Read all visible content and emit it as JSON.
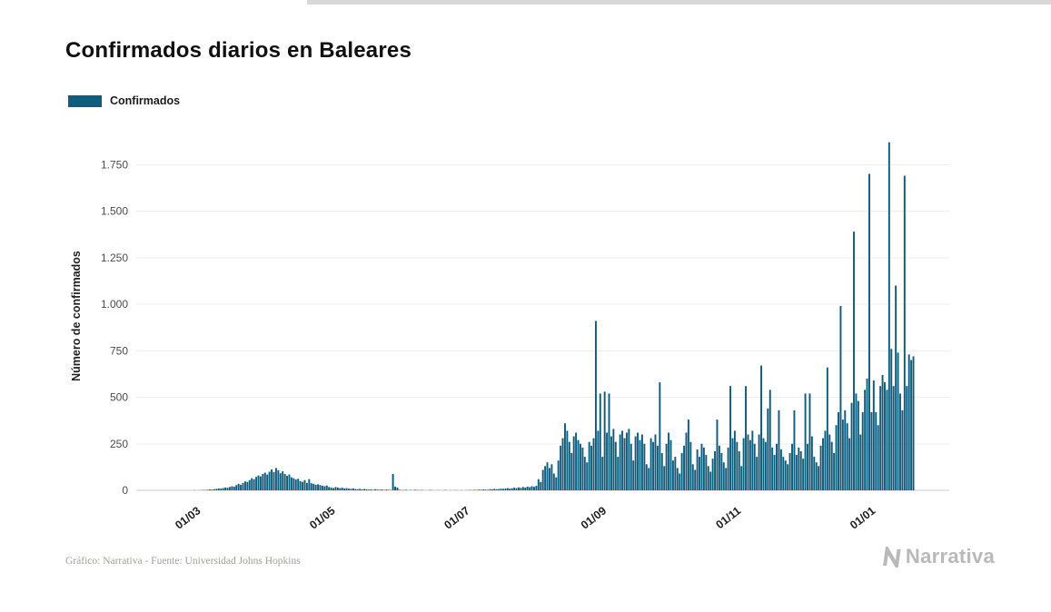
{
  "header": {
    "title": "Confirmados diarios en Baleares"
  },
  "legend": {
    "label": "Confirmados",
    "swatch_color": "#0f5d7d"
  },
  "footer": {
    "credit": "Gráfico: Narrativa - Fuente: Universidad Johns Hopkins",
    "brand": "Narrativa"
  },
  "chart_data": {
    "type": "bar",
    "title": "Confirmados diarios en Baleares",
    "series_name": "Confirmados",
    "bar_color": "#0f5d7d",
    "xlabel": "",
    "ylabel": "Número de confirmados",
    "ylim": [
      0,
      1900
    ],
    "grid": "horizontal",
    "legend_position": "top-left",
    "x_start_date": "2020-02-01",
    "x_frequency": "daily",
    "y_ticks": [
      {
        "label": "0",
        "value": 0
      },
      {
        "label": "250",
        "value": 250
      },
      {
        "label": "500",
        "value": 500
      },
      {
        "label": "750",
        "value": 750
      },
      {
        "label": "1.000",
        "value": 1000
      },
      {
        "label": "1.250",
        "value": 1250
      },
      {
        "label": "1.500",
        "value": 1500
      },
      {
        "label": "1.750",
        "value": 1750
      }
    ],
    "x_ticks": [
      {
        "label": "01/03",
        "index": 29
      },
      {
        "label": "01/05",
        "index": 90
      },
      {
        "label": "01/07",
        "index": 151
      },
      {
        "label": "01/09",
        "index": 213
      },
      {
        "label": "01/11",
        "index": 274
      },
      {
        "label": "01/01",
        "index": 335
      }
    ],
    "values": [
      0,
      0,
      0,
      0,
      0,
      0,
      0,
      0,
      0,
      0,
      0,
      0,
      0,
      0,
      0,
      0,
      0,
      0,
      0,
      0,
      0,
      0,
      0,
      0,
      0,
      0,
      1,
      0,
      1,
      1,
      2,
      2,
      3,
      5,
      4,
      6,
      8,
      10,
      9,
      12,
      15,
      14,
      18,
      22,
      20,
      28,
      35,
      30,
      40,
      48,
      45,
      55,
      65,
      60,
      72,
      80,
      75,
      88,
      95,
      85,
      100,
      112,
      98,
      120,
      108,
      92,
      102,
      88,
      78,
      85,
      70,
      65,
      58,
      62,
      50,
      45,
      55,
      40,
      60,
      38,
      35,
      30,
      32,
      28,
      25,
      22,
      26,
      18,
      15,
      12,
      18,
      15,
      12,
      14,
      10,
      12,
      9,
      8,
      10,
      7,
      6,
      8,
      5,
      7,
      6,
      4,
      5,
      3,
      6,
      4,
      3,
      5,
      2,
      4,
      3,
      2,
      88,
      20,
      15,
      3,
      2,
      2,
      3,
      1,
      2,
      1,
      3,
      2,
      1,
      2,
      1,
      0,
      1,
      2,
      1,
      0,
      1,
      1,
      0,
      1,
      2,
      0,
      1,
      0,
      1,
      1,
      0,
      1,
      0,
      1,
      1,
      2,
      1,
      3,
      2,
      4,
      3,
      5,
      4,
      3,
      6,
      5,
      8,
      6,
      7,
      9,
      8,
      10,
      12,
      9,
      11,
      14,
      12,
      16,
      13,
      18,
      15,
      20,
      17,
      22,
      19,
      24,
      60,
      45,
      110,
      130,
      150,
      120,
      140,
      90,
      70,
      160,
      240,
      280,
      360,
      320,
      260,
      200,
      290,
      310,
      270,
      250,
      230,
      180,
      150,
      260,
      240,
      280,
      910,
      320,
      520,
      180,
      530,
      310,
      520,
      290,
      330,
      260,
      180,
      300,
      320,
      280,
      310,
      330,
      250,
      160,
      290,
      310,
      270,
      300,
      250,
      140,
      120,
      280,
      260,
      300,
      240,
      580,
      200,
      130,
      250,
      310,
      270,
      160,
      180,
      120,
      90,
      200,
      240,
      310,
      380,
      260,
      140,
      110,
      220,
      180,
      250,
      230,
      190,
      130,
      100,
      170,
      210,
      380,
      240,
      200,
      150,
      120,
      230,
      560,
      280,
      320,
      260,
      210,
      130,
      280,
      560,
      300,
      270,
      320,
      250,
      180,
      300,
      670,
      280,
      260,
      440,
      540,
      230,
      190,
      250,
      430,
      220,
      180,
      160,
      140,
      200,
      250,
      430,
      190,
      230,
      210,
      170,
      520,
      250,
      520,
      290,
      180,
      150,
      130,
      240,
      280,
      320,
      660,
      300,
      260,
      200,
      350,
      420,
      990,
      380,
      430,
      360,
      280,
      470,
      1390,
      520,
      480,
      300,
      420,
      540,
      600,
      1700,
      420,
      590,
      420,
      350,
      560,
      620,
      580,
      540,
      1870,
      760,
      560,
      1100,
      740,
      520,
      430,
      1690,
      560,
      730,
      700,
      720
    ]
  }
}
